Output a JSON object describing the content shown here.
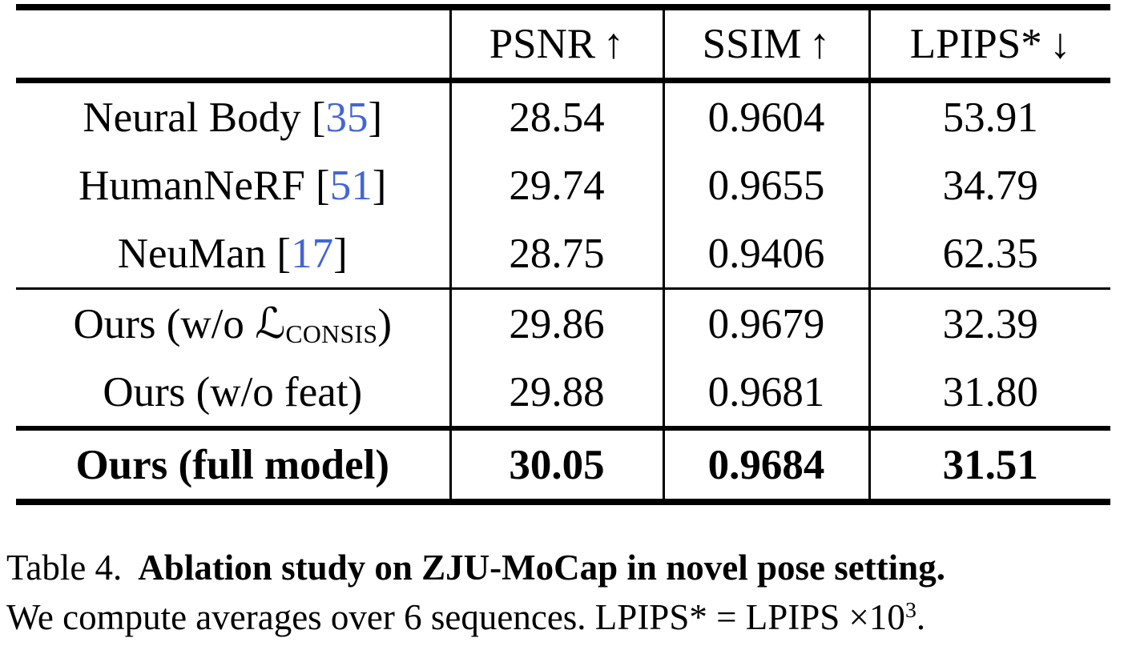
{
  "colors": {
    "text": "#000000",
    "citation": "#4365d9",
    "background": "#ffffff"
  },
  "table": {
    "headers": [
      {
        "text": "PSNR",
        "arrow": "↑"
      },
      {
        "text": "SSIM",
        "arrow": "↑"
      },
      {
        "text": "LPIPS*",
        "arrow": "↓"
      }
    ],
    "rows": [
      {
        "label": {
          "pre": "Neural Body [",
          "cite": "35",
          "post": "]"
        },
        "values": [
          "28.54",
          "0.9604",
          "53.91"
        ]
      },
      {
        "label": {
          "pre": "HumanNeRF [",
          "cite": "51",
          "post": "]"
        },
        "values": [
          "29.74",
          "0.9655",
          "34.79"
        ]
      },
      {
        "label": {
          "pre": "NeuMan [",
          "cite": "17",
          "post": "]"
        },
        "values": [
          "28.75",
          "0.9406",
          "62.35"
        ]
      },
      {
        "label": {
          "pre": "Ours (w/o ",
          "math": "ℒ",
          "sub": "CONSIS",
          "post": ")"
        },
        "values": [
          "29.86",
          "0.9679",
          "32.39"
        ]
      },
      {
        "label": {
          "pre": "Ours (w/o feat)"
        },
        "values": [
          "29.88",
          "0.9681",
          "31.80"
        ]
      },
      {
        "label": {
          "pre": "Ours (full model)"
        },
        "values": [
          "30.05",
          "0.9684",
          "31.51"
        ]
      }
    ]
  },
  "caption": {
    "tag": "Table 4.",
    "bold": "Ablation study on ZJU-MoCap in novel pose setting.",
    "line2": "We compute averages over 6 sequences. LPIPS* = LPIPS ×10",
    "exp": "3",
    "end": "."
  }
}
